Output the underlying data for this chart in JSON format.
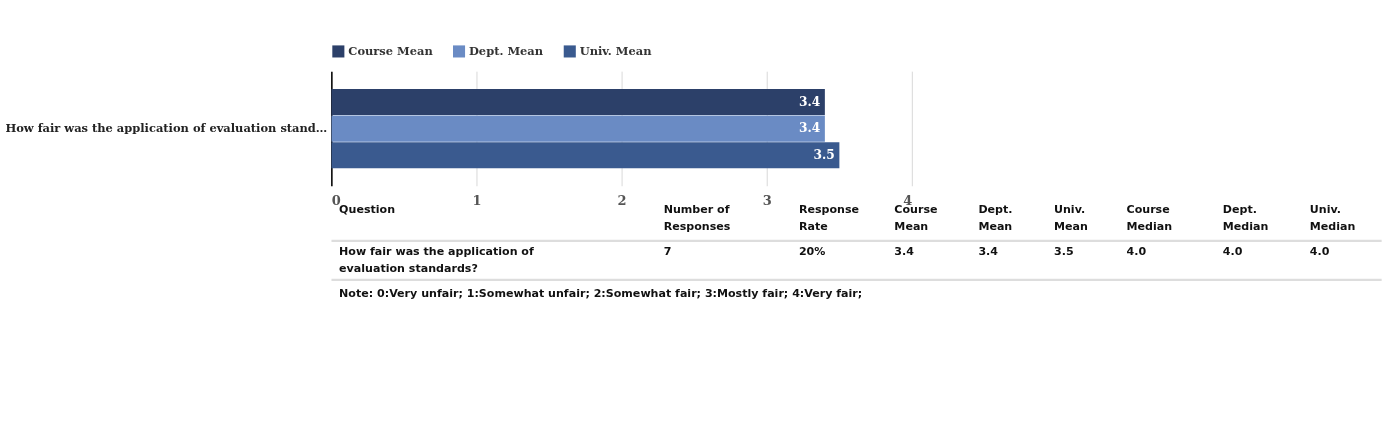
{
  "chart_data": [
    {
      "type": "bar",
      "orientation": "horizontal",
      "categories": [
        "How fair was the application of evaluation stand…"
      ],
      "series": [
        {
          "name": "Course Mean",
          "color": "#2c4069",
          "values": [
            3.4
          ]
        },
        {
          "name": "Dept. Mean",
          "color": "#6a8bc4",
          "values": [
            3.4
          ]
        },
        {
          "name": "Univ. Mean",
          "color": "#3a5a8f",
          "values": [
            3.5
          ]
        }
      ],
      "xlim": [
        0,
        4
      ],
      "xticks": [
        {
          "value": 0,
          "label": "0"
        },
        {
          "value": 1,
          "label": "1"
        },
        {
          "value": 2,
          "label": "2"
        },
        {
          "value": 3,
          "label": "3"
        },
        {
          "value": 4,
          "label": "4"
        }
      ],
      "grid": "x",
      "legend": "top",
      "data_labels": true
    },
    {
      "type": "other",
      "annotations": [
        "Question",
        "Number of\nResponses",
        "Response\nRate",
        "Course\nMean",
        "Dept.\nMean",
        "Univ.\nMean",
        "Course\nMedian",
        "Dept.\nMedian",
        "Univ.\nMedian",
        "How fair was the application of\nevaluation standards?",
        "7",
        "20%",
        "3.4",
        "3.4",
        "3.5",
        "4.0",
        "4.0",
        "4.0",
        "Note: 0:Very unfair; 1:Somewhat unfair; 2:Somewhat fair; 3:Mostly fair; 4:Very fair;"
      ]
    }
  ]
}
